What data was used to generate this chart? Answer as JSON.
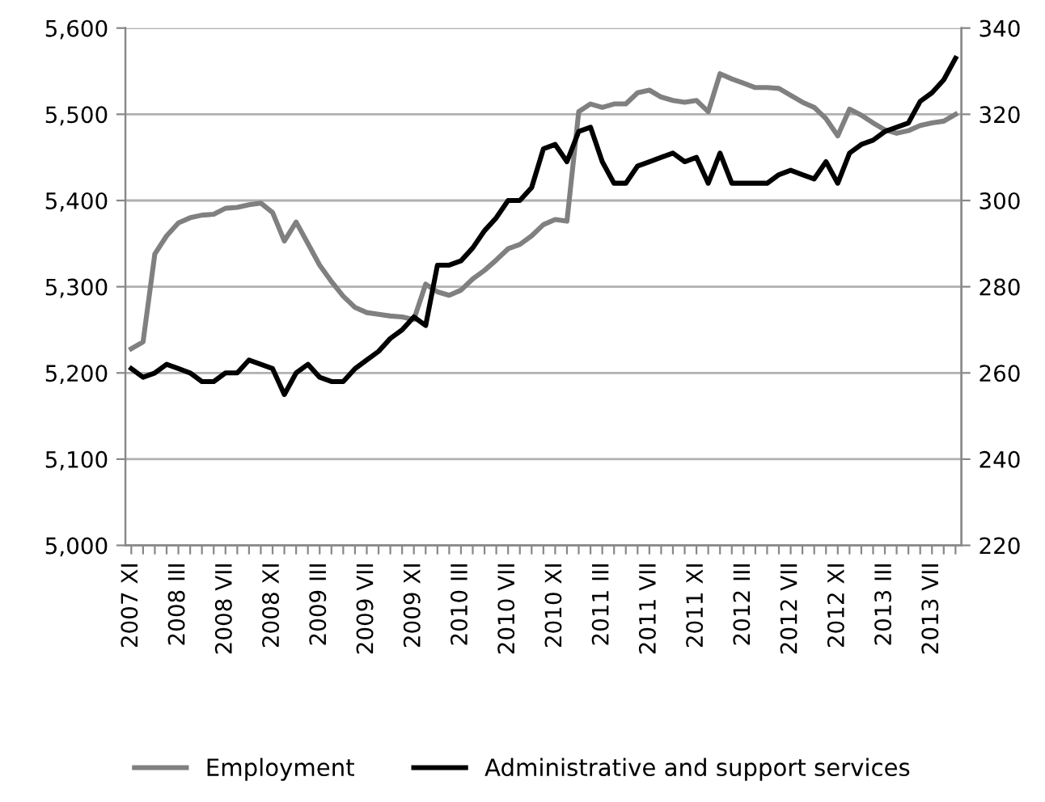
{
  "chart_data": {
    "type": "line",
    "categories": [
      "2007 XI",
      null,
      null,
      null,
      "2008 III",
      null,
      null,
      null,
      "2008 VII",
      null,
      null,
      null,
      "2008 XI",
      null,
      null,
      null,
      "2009 III",
      null,
      null,
      null,
      "2009 VII",
      null,
      null,
      null,
      "2009 XI",
      null,
      null,
      null,
      "2010 III",
      null,
      null,
      null,
      "2010 VII",
      null,
      null,
      null,
      "2010 XI",
      null,
      null,
      null,
      "2011 III",
      null,
      null,
      null,
      "2011 VII",
      null,
      null,
      null,
      "2011 XI",
      null,
      null,
      null,
      "2012 III",
      null,
      null,
      null,
      "2012 VII",
      null,
      null,
      null,
      "2012 XI",
      null,
      null,
      null,
      "2013 III",
      null,
      null,
      null,
      "2013 VII",
      null,
      null
    ],
    "series": [
      {
        "name": "Employment",
        "color": "#808080",
        "values": [
          5228,
          5236,
          5338,
          5359,
          5374,
          5380,
          5383,
          5384,
          5391,
          5392,
          5395,
          5397,
          5386,
          5353,
          5375,
          5350,
          5325,
          5306,
          5289,
          5276,
          5270,
          5268,
          5266,
          5265,
          5262,
          5303,
          5294,
          5290,
          5296,
          5309,
          5319,
          5331,
          5344,
          5349,
          5359,
          5372,
          5378,
          5376,
          5503,
          5512,
          5508,
          5512,
          5512,
          5525,
          5528,
          5520,
          5516,
          5514,
          5516,
          5503,
          5547,
          5541,
          5536,
          5531,
          5531,
          5530,
          5522,
          5514,
          5508,
          5495,
          5475,
          5506,
          5499,
          5490,
          5482,
          5478,
          5481,
          5487,
          5490,
          5492,
          5500
        ]
      },
      {
        "name": "Administrative and support services",
        "color": "#000000",
        "axis": "y2",
        "values": [
          261,
          259,
          260,
          262,
          261,
          260,
          258,
          258,
          260,
          260,
          263,
          262,
          261,
          255,
          260,
          262,
          259,
          258,
          258,
          261,
          263,
          265,
          268,
          270,
          273,
          271,
          285,
          285,
          286,
          289,
          293,
          296,
          300,
          300,
          303,
          312,
          313,
          309,
          316,
          317,
          309,
          304,
          304,
          308,
          309,
          310,
          311,
          309,
          310,
          304,
          311,
          304,
          304,
          304,
          304,
          306,
          307,
          306,
          305,
          309,
          304,
          311,
          313,
          314,
          316,
          317,
          318,
          323,
          325,
          328,
          333
        ]
      }
    ],
    "ylim": [
      5000,
      5600
    ],
    "yticks": [
      {
        "value": 5000,
        "label": "5,000"
      },
      {
        "value": 5100,
        "label": "5,100"
      },
      {
        "value": 5200,
        "label": "5,200"
      },
      {
        "value": 5300,
        "label": "5,300"
      },
      {
        "value": 5400,
        "label": "5,400"
      },
      {
        "value": 5500,
        "label": "5,500"
      },
      {
        "value": 5600,
        "label": "5,600"
      }
    ],
    "y2lim": [
      220,
      340
    ],
    "y2ticks": [
      220,
      240,
      260,
      280,
      300,
      320,
      340
    ],
    "grid": "y",
    "legend": "bottom",
    "marker": "none",
    "line_style": "solid"
  }
}
